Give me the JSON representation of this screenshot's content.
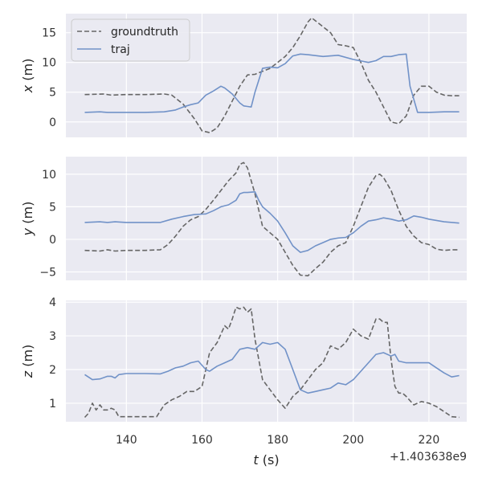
{
  "chart_data": {
    "type": "line",
    "x_offset_label": "+1.403638e9",
    "xlabel_prefix": "t",
    "xlabel_suffix": " (s)",
    "xlim": [
      124,
      230
    ],
    "xticks": [
      140,
      160,
      180,
      200,
      220
    ],
    "legend": {
      "placement": "top-left",
      "entries": [
        "groundtruth",
        "traj"
      ]
    },
    "style": {
      "background": "#eaeaf2",
      "grid": true,
      "groundtruth_color": "#666666",
      "traj_color": "#7192c8"
    },
    "panels": [
      {
        "ylabel_prefix": "x",
        "ylabel_suffix": " (m)",
        "ylim": [
          -2.6,
          18.2
        ],
        "yticks": [
          0,
          5,
          10,
          15
        ],
        "series": [
          {
            "name": "groundtruth",
            "x": [
              129,
              134,
              136,
              140,
              145,
              150,
              152,
              155,
              158,
              160,
              162,
              164,
              166,
              168,
              170,
              172,
              174,
              176,
              178,
              180,
              182,
              184,
              186,
              188,
              189,
              190,
              192,
              194,
              196,
              198,
              200,
              202,
              204,
              206,
              208,
              210,
              212,
              214,
              216,
              218,
              220,
              222,
              224,
              226,
              228
            ],
            "y": [
              4.6,
              4.7,
              4.5,
              4.6,
              4.6,
              4.7,
              4.5,
              3.0,
              0.5,
              -1.5,
              -1.8,
              -1.0,
              1.0,
              3.5,
              6.0,
              7.9,
              8.0,
              8.5,
              9.0,
              10.0,
              11.0,
              12.5,
              14.5,
              16.8,
              17.5,
              17.0,
              16.0,
              15.0,
              13.0,
              12.8,
              12.5,
              10.0,
              7.0,
              5.0,
              2.5,
              0.0,
              -0.3,
              1.0,
              4.5,
              6.0,
              6.0,
              5.0,
              4.5,
              4.4,
              4.4
            ]
          },
          {
            "name": "traj",
            "x": [
              129,
              133,
              135,
              137,
              140,
              145,
              150,
              153,
              155,
              157,
              159,
              161,
              163,
              165,
              166,
              168,
              170,
              171,
              172,
              173,
              174,
              176,
              178,
              180,
              182,
              184,
              186,
              188,
              192,
              196,
              200,
              204,
              206,
              208,
              210,
              212,
              214,
              215,
              217,
              220,
              224,
              228
            ],
            "y": [
              1.6,
              1.7,
              1.6,
              1.6,
              1.6,
              1.6,
              1.7,
              2.0,
              2.5,
              2.9,
              3.2,
              4.5,
              5.2,
              6.0,
              5.7,
              4.7,
              3.2,
              2.7,
              2.6,
              2.5,
              5.0,
              9.0,
              9.2,
              9.1,
              9.8,
              11.1,
              11.4,
              11.3,
              11.0,
              11.2,
              10.5,
              10.0,
              10.3,
              11.0,
              11.0,
              11.3,
              11.4,
              6.0,
              1.6,
              1.6,
              1.7,
              1.7
            ]
          }
        ]
      },
      {
        "ylabel_prefix": "y",
        "ylabel_suffix": " (m)",
        "ylim": [
          -6.3,
          12.7
        ],
        "yticks": [
          -5,
          0,
          5,
          10
        ],
        "series": [
          {
            "name": "groundtruth",
            "x": [
              129,
              133,
              135,
              137,
              140,
              145,
              149,
              151,
              153,
              155,
              157,
              159,
              161,
              163,
              165,
              167,
              169,
              170,
              171,
              172,
              174,
              176,
              178,
              180,
              182,
              184,
              186,
              188,
              190,
              192,
              194,
              196,
              198,
              200,
              202,
              204,
              206,
              207,
              208,
              210,
              212,
              214,
              216,
              218,
              220,
              222,
              224,
              226,
              228
            ],
            "y": [
              -1.7,
              -1.8,
              -1.6,
              -1.8,
              -1.7,
              -1.7,
              -1.6,
              -0.8,
              0.5,
              2.0,
              3.0,
              3.5,
              4.6,
              6.0,
              7.5,
              9.0,
              10.2,
              11.5,
              11.8,
              11.0,
              7.0,
              2.0,
              1.0,
              0.0,
              -2.0,
              -4.0,
              -5.5,
              -5.6,
              -4.5,
              -3.5,
              -2.0,
              -1.0,
              -0.5,
              2.0,
              5.0,
              8.0,
              9.8,
              10.0,
              9.5,
              7.5,
              4.5,
              2.0,
              0.5,
              -0.5,
              -0.8,
              -1.5,
              -1.7,
              -1.6,
              -1.6
            ]
          },
          {
            "name": "traj",
            "x": [
              129,
              133,
              135,
              137,
              140,
              145,
              149,
              152,
              155,
              158,
              161,
              163,
              165,
              167,
              169,
              170,
              171,
              172,
              174,
              175,
              176,
              178,
              180,
              182,
              184,
              185,
              186,
              188,
              190,
              192,
              194,
              196,
              198,
              200,
              202,
              204,
              206,
              208,
              210,
              212,
              214,
              216,
              218,
              220,
              224,
              228
            ],
            "y": [
              2.6,
              2.7,
              2.6,
              2.7,
              2.6,
              2.6,
              2.6,
              3.1,
              3.5,
              3.8,
              3.9,
              4.4,
              5.0,
              5.3,
              6.0,
              7.0,
              7.2,
              7.2,
              7.3,
              6.0,
              5.0,
              4.0,
              2.8,
              1.0,
              -1.0,
              -1.5,
              -2.0,
              -1.7,
              -1.0,
              -0.5,
              0.0,
              0.2,
              0.3,
              1.0,
              2.0,
              2.8,
              3.0,
              3.3,
              3.1,
              2.8,
              3.0,
              3.6,
              3.4,
              3.1,
              2.7,
              2.5
            ]
          }
        ]
      },
      {
        "ylabel_prefix": "z",
        "ylabel_suffix": " (m)",
        "ylim": [
          0.45,
          4.05
        ],
        "yticks": [
          1,
          2,
          3,
          4
        ],
        "series": [
          {
            "name": "groundtruth",
            "x": [
              129,
              130,
              131,
              132,
              133,
              134,
              135,
              136,
              137,
              138,
              140,
              144,
              148,
              150,
              152,
              154,
              156,
              158,
              160,
              162,
              164,
              166,
              167,
              168,
              169,
              170,
              171,
              172,
              173,
              174,
              176,
              178,
              180,
              182,
              184,
              186,
              188,
              190,
              192,
              194,
              196,
              198,
              200,
              202,
              204,
              206,
              207,
              208,
              209,
              210,
              211,
              212,
              213,
              214,
              216,
              218,
              220,
              222,
              224,
              226,
              228
            ],
            "y": [
              0.58,
              0.7,
              1.0,
              0.8,
              0.95,
              0.8,
              0.8,
              0.85,
              0.8,
              0.6,
              0.6,
              0.6,
              0.6,
              0.95,
              1.1,
              1.2,
              1.35,
              1.35,
              1.5,
              2.5,
              2.8,
              3.3,
              3.2,
              3.5,
              3.85,
              3.8,
              3.85,
              3.7,
              3.8,
              2.9,
              1.7,
              1.4,
              1.1,
              0.85,
              1.2,
              1.4,
              1.7,
              2.0,
              2.2,
              2.7,
              2.6,
              2.8,
              3.2,
              3.0,
              2.9,
              3.5,
              3.5,
              3.4,
              3.4,
              2.3,
              1.5,
              1.3,
              1.3,
              1.2,
              0.95,
              1.05,
              1.0,
              0.9,
              0.75,
              0.6,
              0.58
            ]
          },
          {
            "name": "traj",
            "x": [
              129,
              131,
              133,
              135,
              136,
              137,
              138,
              140,
              145,
              149,
              151,
              153,
              155,
              157,
              159,
              161,
              162,
              164,
              166,
              168,
              170,
              172,
              174,
              176,
              178,
              180,
              182,
              184,
              186,
              188,
              190,
              192,
              194,
              196,
              198,
              200,
              202,
              204,
              206,
              208,
              210,
              211,
              212,
              214,
              216,
              218,
              220,
              222,
              224,
              226,
              228
            ],
            "y": [
              1.85,
              1.7,
              1.72,
              1.8,
              1.8,
              1.75,
              1.85,
              1.88,
              1.88,
              1.87,
              1.95,
              2.05,
              2.1,
              2.2,
              2.25,
              2.0,
              1.95,
              2.1,
              2.2,
              2.3,
              2.6,
              2.65,
              2.6,
              2.8,
              2.75,
              2.8,
              2.6,
              2.0,
              1.4,
              1.3,
              1.35,
              1.4,
              1.45,
              1.6,
              1.55,
              1.7,
              1.95,
              2.2,
              2.45,
              2.5,
              2.4,
              2.45,
              2.25,
              2.2,
              2.2,
              2.2,
              2.2,
              2.05,
              1.9,
              1.78,
              1.82
            ]
          }
        ]
      }
    ]
  }
}
